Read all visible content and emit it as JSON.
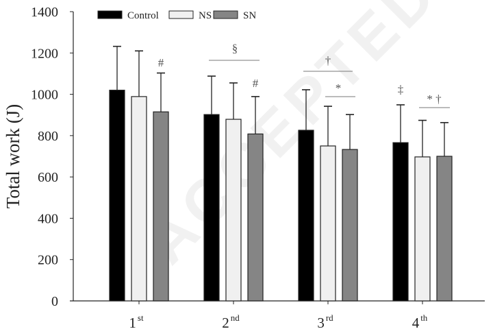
{
  "chart_data": {
    "type": "bar",
    "title": "",
    "xlabel": "",
    "ylabel": "Total work (J)",
    "ylim": [
      0,
      1400
    ],
    "yticks": [
      0,
      200,
      400,
      600,
      800,
      1000,
      1200,
      1400
    ],
    "categories": [
      {
        "base": "1",
        "sup": "st"
      },
      {
        "base": "2",
        "sup": "nd"
      },
      {
        "base": "3",
        "sup": "rd"
      },
      {
        "base": "4",
        "sup": "th"
      }
    ],
    "series": [
      {
        "name": "Control",
        "color": "#000000",
        "values": [
          1020,
          902,
          826,
          766
        ],
        "error_upper": [
          1232,
          1088,
          1022,
          949
        ]
      },
      {
        "name": "NS",
        "color": "#f0f0f0",
        "values": [
          989,
          879,
          750,
          697
        ],
        "error_upper": [
          1210,
          1055,
          942,
          874
        ]
      },
      {
        "name": "SN",
        "color": "#858585",
        "values": [
          915,
          808,
          733,
          700
        ],
        "error_upper": [
          1103,
          989,
          902,
          863
        ]
      }
    ],
    "legend_position": "top-left",
    "grid": false,
    "annotations": [
      {
        "text": "#",
        "category": 0,
        "series": 2
      },
      {
        "text": "§",
        "category": 1,
        "bracket": [
          0,
          2
        ]
      },
      {
        "text": "#",
        "category": 1,
        "series": 2
      },
      {
        "text": "†",
        "category": 2,
        "bracket": [
          0,
          2
        ]
      },
      {
        "text": "*",
        "category": 2,
        "bracket": [
          1,
          2
        ]
      },
      {
        "text": "‡",
        "category": 3,
        "series": 0
      },
      {
        "text": "* †",
        "category": 3,
        "bracket": [
          1,
          2
        ]
      }
    ]
  },
  "watermark": "ACCEPTED"
}
